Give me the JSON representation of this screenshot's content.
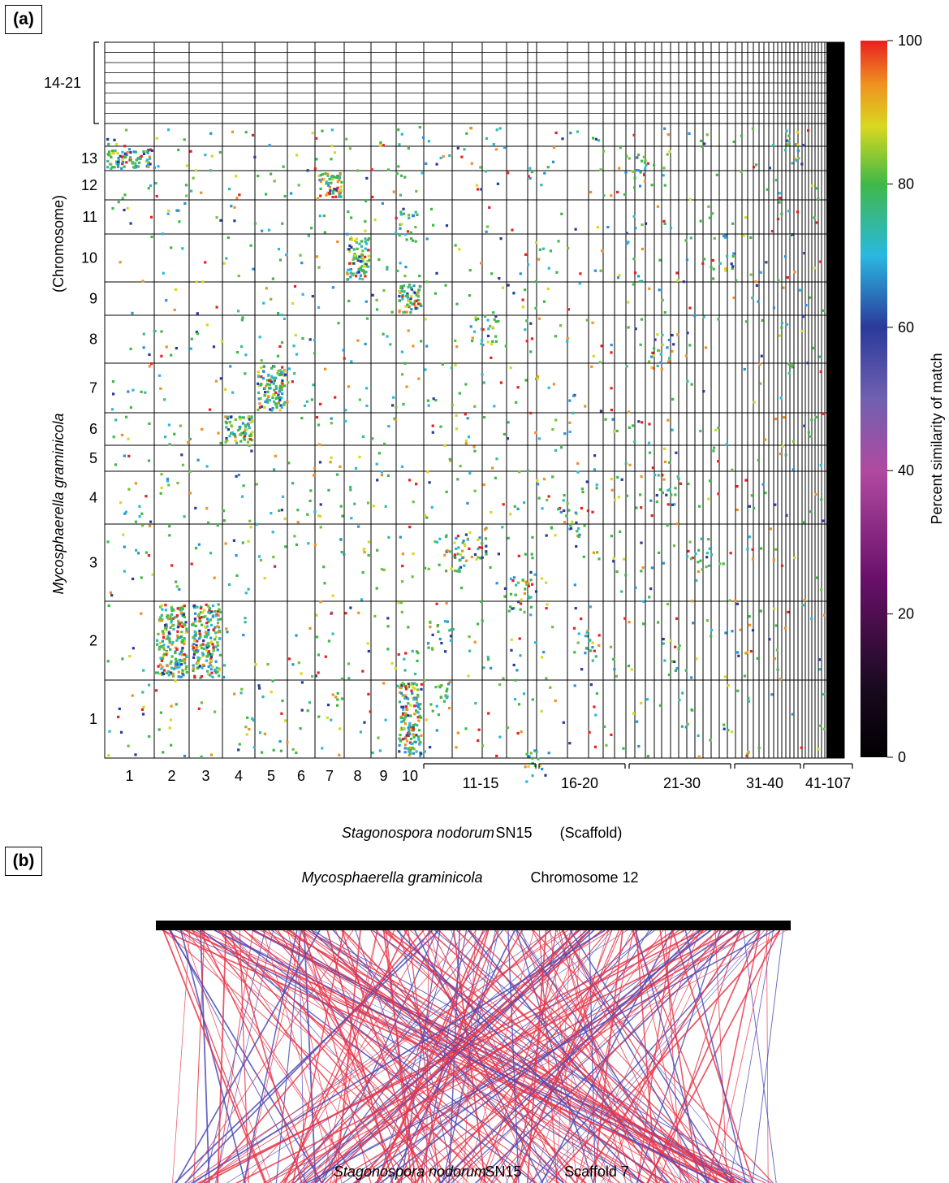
{
  "panel_a_label": "(a)",
  "panel_b_label": "(b)",
  "chart_data": [
    {
      "type": "heatmap",
      "title": "",
      "ylabel_species": "Mycosphaerella graminicola",
      "ylabel_unit": "(Chromosome)",
      "xlabel_species": "Stagonospora nodorum",
      "xlabel_strain": "SN15",
      "xlabel_unit": "(Scaffold)",
      "x_tick_labels": [
        "1",
        "2",
        "3",
        "4",
        "5",
        "6",
        "7",
        "8",
        "9",
        "10"
      ],
      "x_group_labels": [
        "11-15",
        "16-20",
        "21-30",
        "31-40",
        "41-107"
      ],
      "y_tick_labels": [
        "1",
        "2",
        "3",
        "4",
        "5",
        "6",
        "7",
        "8",
        "9",
        "10",
        "11",
        "12",
        "13"
      ],
      "y_group_label": "14-21",
      "colorbar": {
        "label": "Percent similarity of match",
        "ticks": [
          "0",
          "20",
          "40",
          "60",
          "80",
          "100"
        ],
        "range": [
          0,
          100
        ],
        "colors": [
          "#000000",
          "#3a0a3a",
          "#8a1a8a",
          "#b04aa0",
          "#5a5aa8",
          "#2a3a9a",
          "#2ab8e0",
          "#40b848",
          "#d8d820",
          "#f09020",
          "#e82020"
        ]
      },
      "conserved_blocks": [
        {
          "scaffold": "1",
          "chromosome": "13"
        },
        {
          "scaffold": "7",
          "chromosome": "12"
        },
        {
          "scaffold": "8",
          "chromosome": "10"
        },
        {
          "scaffold": "10",
          "chromosome": "9"
        },
        {
          "scaffold": "4",
          "chromosome": "6"
        },
        {
          "scaffold": "5",
          "chromosome": "7"
        },
        {
          "scaffold": "2",
          "chromosome": "2"
        },
        {
          "scaffold": "3",
          "chromosome": "2"
        },
        {
          "scaffold": "10",
          "chromosome": "1"
        }
      ]
    },
    {
      "type": "line",
      "title": "",
      "top_species": "Mycosphaerella graminicola",
      "top_label": "Chromosome 12",
      "bottom_species": "Stagonospora nodorum",
      "bottom_strain": "SN15",
      "bottom_label": "Scaffold 7",
      "link_colors": [
        "#e8364a",
        "#4a4ab8"
      ]
    }
  ]
}
